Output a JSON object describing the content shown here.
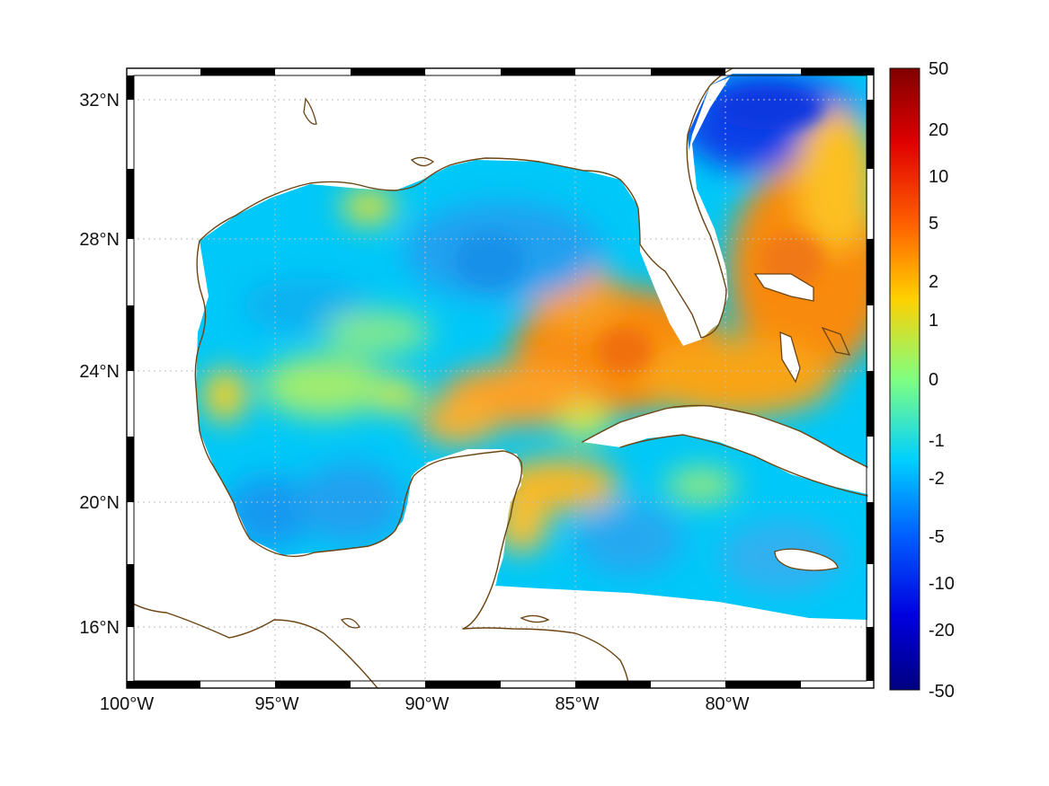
{
  "map": {
    "x_axis": {
      "ticks": [
        "100°W",
        "95°W",
        "90°W",
        "85°W",
        "80°W"
      ],
      "values": [
        -100,
        -95,
        -90,
        -85,
        -80
      ],
      "range": [
        -100,
        -75
      ]
    },
    "y_axis": {
      "ticks": [
        "32°N",
        "28°N",
        "24°N",
        "20°N",
        "16°N"
      ],
      "values": [
        32,
        28,
        24,
        20,
        16
      ],
      "range": [
        14.2,
        33
      ]
    },
    "colorbar": {
      "tick_labels": [
        "50",
        "20",
        "10",
        "5",
        "2",
        "1",
        "0",
        "-1",
        "-2",
        "-5",
        "-10",
        "-20",
        "-50"
      ],
      "colormap": "jet",
      "scale": "symmetric-log",
      "range": [
        -50,
        50
      ]
    },
    "colors": {
      "coastline": "#6b4412",
      "gridline": "#bdbdbd",
      "no_data": "#ffffff"
    }
  }
}
